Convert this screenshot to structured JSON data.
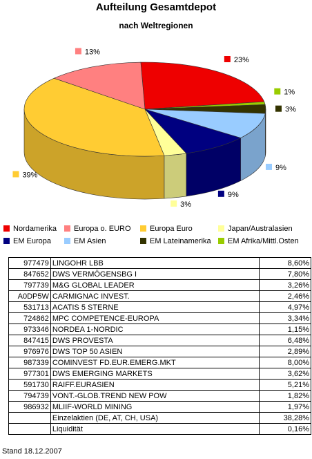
{
  "chart_data": {
    "type": "pie",
    "title": "Aufteilung Gesamtdepot",
    "subtitle": "nach Weltregionen",
    "slices": [
      {
        "name": "Nordamerika",
        "value": 23,
        "label": "23%",
        "color": "#ee0000"
      },
      {
        "name": "EM Afrika/Mittl.Osten",
        "value": 1,
        "label": "1%",
        "color": "#99cc00"
      },
      {
        "name": "EM Lateinamerika",
        "value": 3,
        "label": "3%",
        "color": "#333300"
      },
      {
        "name": "EM Asien",
        "value": 9,
        "label": "9%",
        "color": "#99ccff"
      },
      {
        "name": "EM Europa",
        "value": 9,
        "label": "9%",
        "color": "#000080"
      },
      {
        "name": "Japan/Australasien",
        "value": 3,
        "label": "3%",
        "color": "#ffff99"
      },
      {
        "name": "Europa Euro",
        "value": 39,
        "label": "39%",
        "color": "#ffcc33"
      },
      {
        "name": "Europa o. EURO",
        "value": 13,
        "label": "13%",
        "color": "#ff8080"
      }
    ],
    "legend": {
      "placement": "bottom",
      "order": [
        "Nordamerika",
        "Europa o. EURO",
        "Europa Euro",
        "Japan/Australasien",
        "EM Europa",
        "EM Asien",
        "EM Lateinamerika",
        "EM Afrika/Mittl.Osten"
      ]
    },
    "style": "3d-pie"
  },
  "table": {
    "rows": [
      {
        "wkn": "977479",
        "name": "LINGOHR LBB",
        "pct": "8,60%"
      },
      {
        "wkn": "847652",
        "name": "DWS VERMÖGENSBG I",
        "pct": "7,80%"
      },
      {
        "wkn": "797739",
        "name": "M&G GLOBAL LEADER",
        "pct": "3,26%"
      },
      {
        "wkn": "A0DP5W",
        "name": "CARMIGNAC INVEST.",
        "pct": "2,46%"
      },
      {
        "wkn": "531713",
        "name": "ACATIS 5 STERNE",
        "pct": "4,97%"
      },
      {
        "wkn": "724862",
        "name": "MPC COMPETENCE-EUROPA",
        "pct": "3,34%"
      },
      {
        "wkn": "973346",
        "name": "NORDEA 1-NORDIC",
        "pct": "1,15%"
      },
      {
        "wkn": "847415",
        "name": "DWS PROVESTA",
        "pct": "6,48%"
      },
      {
        "wkn": "976976",
        "name": "DWS TOP 50 ASIEN",
        "pct": "2,89%"
      },
      {
        "wkn": "987339",
        "name": "COMINVEST FD.EUR.EMERG.MKT",
        "pct": "8,00%"
      },
      {
        "wkn": "977301",
        "name": "DWS EMERGING MARKETS",
        "pct": "3,62%"
      },
      {
        "wkn": "591730",
        "name": "RAIFF.EURASIEN",
        "pct": "5,21%"
      },
      {
        "wkn": "794739",
        "name": "VONT.-GLOB.TREND NEW POW",
        "pct": "1,82%"
      },
      {
        "wkn": "986932",
        "name": "MLIIF-WORLD MINING",
        "pct": "1,97%"
      },
      {
        "wkn": "",
        "name": "Einzelaktien (DE, AT, CH, USA)",
        "pct": "38,28%"
      },
      {
        "wkn": "",
        "name": "Liquidität",
        "pct": "0,16%"
      }
    ]
  },
  "footer": "Stand 18.12.2007"
}
